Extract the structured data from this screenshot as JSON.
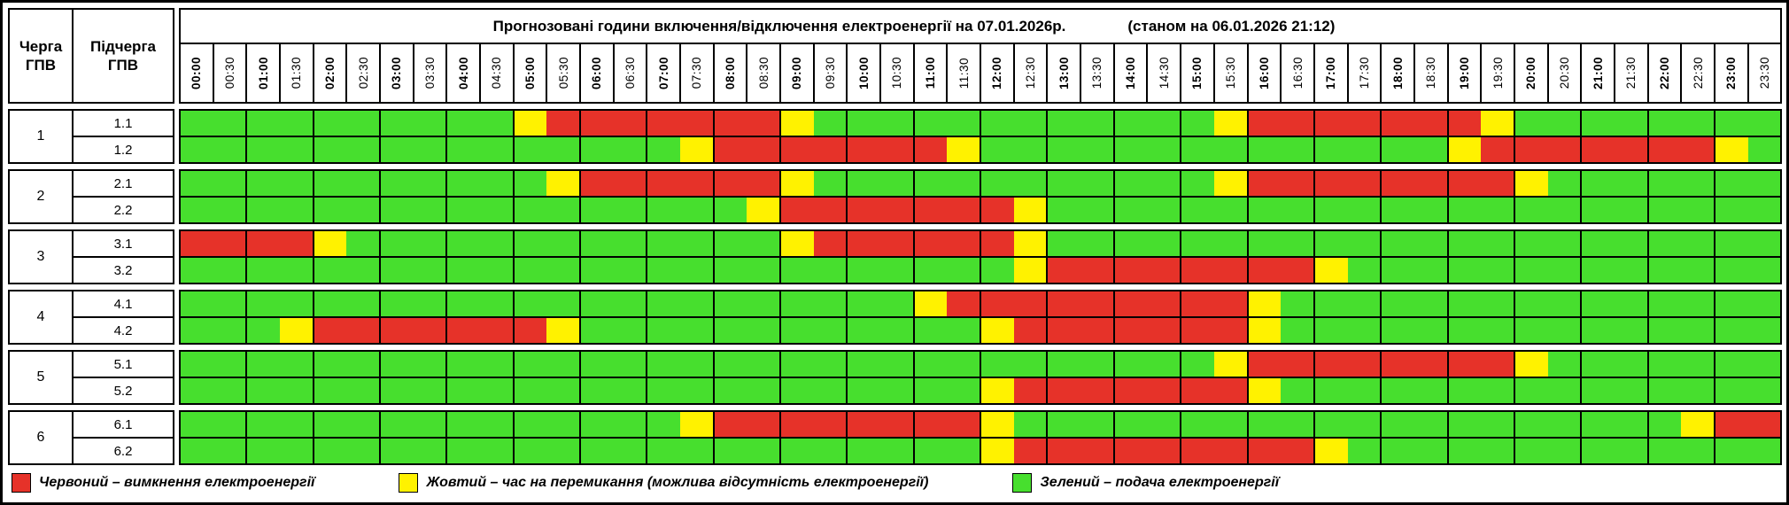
{
  "header": {
    "queue_col": "Черга\nГПВ",
    "subqueue_col": "Підчерга\nГПВ",
    "title": "Прогнозовані години включення/відключення електроенергії на 07.01.2026р.",
    "as_of": "(станом на 06.01.2026 21:12)"
  },
  "colors": {
    "G": "#47DF2E",
    "R": "#E63229",
    "Y": "#FFF200"
  },
  "chart_data": {
    "type": "heatmap",
    "title": "Прогнозовані години включення/відключення електроенергії на 07.01.2026р.",
    "subtitle": "(станом на 06.01.2026 21:12)",
    "legend_position": "bottom",
    "cell_states": {
      "G": "подача електроенергії",
      "R": "вимкнення електроенергії",
      "Y": "час на перемикання"
    },
    "time_slots": [
      "00:00",
      "00:30",
      "01:00",
      "01:30",
      "02:00",
      "02:30",
      "03:00",
      "03:30",
      "04:00",
      "04:30",
      "05:00",
      "05:30",
      "06:00",
      "06:30",
      "07:00",
      "07:30",
      "08:00",
      "08:30",
      "09:00",
      "09:30",
      "10:00",
      "10:30",
      "11:00",
      "11:30",
      "12:00",
      "12:30",
      "13:00",
      "13:30",
      "14:00",
      "14:30",
      "15:00",
      "15:30",
      "16:00",
      "16:30",
      "17:00",
      "17:30",
      "18:00",
      "18:30",
      "19:00",
      "19:30",
      "20:00",
      "20:30",
      "21:00",
      "21:30",
      "22:00",
      "22:30",
      "23:00",
      "23:30"
    ],
    "groups": [
      {
        "queue": "1",
        "rows": [
          {
            "label": "1.1",
            "cells": "GGGGGGGGGGYRRRRRRRYGGGGGGGGGGGGYRRRRRRRYGGGGGGGG"
          },
          {
            "label": "1.2",
            "cells": "GGGGGGGGGGGGGGGYRRRRRRRYGGGGGGGGGGGGGGYRRRRRRRYG"
          }
        ]
      },
      {
        "queue": "2",
        "rows": [
          {
            "label": "2.1",
            "cells": "GGGGGGGGGGGYRRRRRRYGGGGGGGGGGGGYRRRRRRRRYGGGGGGG"
          },
          {
            "label": "2.2",
            "cells": "GGGGGGGGGGGGGGGGGYRRRRRRRYGGGGGGGGGGGGGGGGGGGGGG"
          }
        ]
      },
      {
        "queue": "3",
        "rows": [
          {
            "label": "3.1",
            "cells": "RRRRYGGGGGGGGGGGGGYRRRRRRYGGGGGGGGGGGGGGGGGGGGGG"
          },
          {
            "label": "3.2",
            "cells": "GGGGGGGGGGGGGGGGGGGGGGGGGYRRRRRRRRYGGGGGGGGGGGGG"
          }
        ]
      },
      {
        "queue": "4",
        "rows": [
          {
            "label": "4.1",
            "cells": "GGGGGGGGGGGGGGGGGGGGGGYRRRRRRRRRYGGGGGGGGGGGGGGG"
          },
          {
            "label": "4.2",
            "cells": "GGGYRRRRRRRYGGGGGGGGGGGGYRRRRRRRYGGGGGGGGGGGGGGG"
          }
        ]
      },
      {
        "queue": "5",
        "rows": [
          {
            "label": "5.1",
            "cells": "GGGGGGGGGGGGGGGGGGGGGGGGGGGGGGGYRRRRRRRRYGGGGGGG"
          },
          {
            "label": "5.2",
            "cells": "GGGGGGGGGGGGGGGGGGGGGGGGYRRRRRRRYGGGGGGGGGGGGGGG"
          }
        ]
      },
      {
        "queue": "6",
        "rows": [
          {
            "label": "6.1",
            "cells": "GGGGGGGGGGGGGGGYRRRRRRRRYGGGGGGGGGGGGGGGGGGGGYRR"
          },
          {
            "label": "6.2",
            "cells": "GGGGGGGGGGGGGGGGGGGGGGGGYRRRRRRRRRYGGGGGGGGGGGGG"
          }
        ]
      }
    ]
  },
  "legend": {
    "items": [
      {
        "key": "R",
        "label": "Червоний – вимкнення електроенергії"
      },
      {
        "key": "Y",
        "label": "Жовтий – час на перемикання (можлива відсутність електроенергії)"
      },
      {
        "key": "G",
        "label": "Зелений – подача електроенергії"
      }
    ]
  }
}
